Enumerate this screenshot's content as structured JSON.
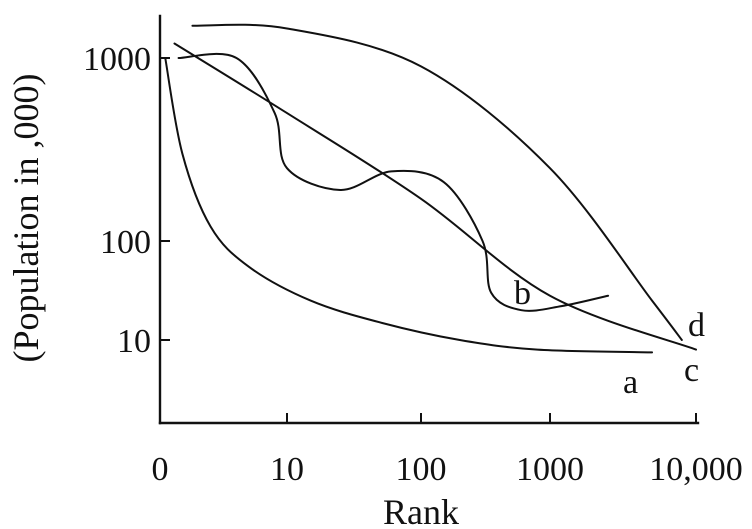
{
  "chart_data": {
    "type": "line",
    "title": "",
    "xlabel": "Rank",
    "ylabel": "(Population in ,000)",
    "x_ticks": [
      "0",
      "10",
      "100",
      "1000",
      "10,000"
    ],
    "y_ticks": [
      "10",
      "100",
      "1000"
    ],
    "series": [
      {
        "name": "a",
        "points": [
          [
            1.1,
            1000
          ],
          [
            1.5,
            300
          ],
          [
            2.5,
            120
          ],
          [
            5,
            55
          ],
          [
            15,
            25
          ],
          [
            50,
            15
          ],
          [
            200,
            10
          ],
          [
            800,
            8
          ],
          [
            5000,
            7.5
          ]
        ]
      },
      {
        "name": "b",
        "points": [
          [
            1.4,
            1000
          ],
          [
            4,
            1000
          ],
          [
            8,
            500
          ],
          [
            10,
            250
          ],
          [
            25,
            190
          ],
          [
            60,
            240
          ],
          [
            150,
            210
          ],
          [
            300,
            100
          ],
          [
            350,
            30
          ],
          [
            600,
            20
          ],
          [
            1200,
            22
          ],
          [
            2500,
            28
          ]
        ]
      },
      {
        "name": "c",
        "points": [
          [
            1.3,
            1200
          ],
          [
            10,
            500
          ],
          [
            100,
            170
          ],
          [
            1000,
            28
          ],
          [
            10000,
            8
          ]
        ]
      },
      {
        "name": "d",
        "points": [
          [
            1.8,
            1500
          ],
          [
            10,
            1450
          ],
          [
            100,
            900
          ],
          [
            1000,
            250
          ],
          [
            5000,
            25
          ],
          [
            8000,
            10
          ]
        ]
      }
    ]
  }
}
